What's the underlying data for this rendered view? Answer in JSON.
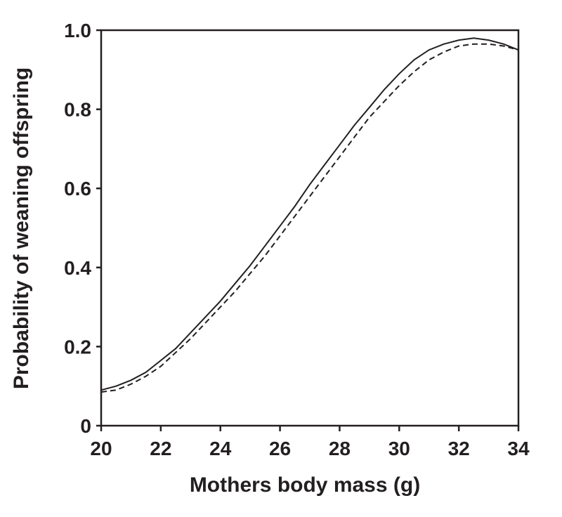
{
  "chart_data": {
    "type": "line",
    "xlabel": "Mothers body mass (g)",
    "ylabel": "Probability of weaning offspring",
    "xlim": [
      20,
      34
    ],
    "ylim": [
      0,
      1.0
    ],
    "x_ticks": [
      20,
      22,
      24,
      26,
      28,
      30,
      32,
      34
    ],
    "x_tick_labels": [
      "20",
      "22",
      "24",
      "26",
      "28",
      "30",
      "32",
      "34"
    ],
    "y_ticks": [
      0,
      0.2,
      0.4,
      0.6,
      0.8,
      1.0
    ],
    "y_tick_labels": [
      "0",
      "0.2",
      "0.4",
      "0.6",
      "0.8",
      "1.0"
    ],
    "grid": false,
    "legend": "none",
    "x": [
      20,
      20.5,
      21,
      21.5,
      22,
      22.5,
      23,
      23.5,
      24,
      24.5,
      25,
      25.5,
      26,
      26.5,
      27,
      27.5,
      28,
      28.5,
      29,
      29.5,
      30,
      30.5,
      31,
      31.5,
      32,
      32.5,
      33,
      33.5,
      34
    ],
    "series": [
      {
        "style": "solid",
        "values": [
          0.09,
          0.1,
          0.115,
          0.135,
          0.165,
          0.195,
          0.235,
          0.275,
          0.315,
          0.36,
          0.405,
          0.455,
          0.505,
          0.555,
          0.61,
          0.66,
          0.71,
          0.76,
          0.805,
          0.85,
          0.89,
          0.925,
          0.95,
          0.965,
          0.975,
          0.98,
          0.975,
          0.965,
          0.95
        ]
      },
      {
        "style": "dashed",
        "values": [
          0.085,
          0.09,
          0.105,
          0.125,
          0.15,
          0.185,
          0.22,
          0.26,
          0.3,
          0.34,
          0.385,
          0.43,
          0.48,
          0.53,
          0.58,
          0.63,
          0.68,
          0.73,
          0.78,
          0.82,
          0.86,
          0.895,
          0.925,
          0.945,
          0.96,
          0.965,
          0.965,
          0.96,
          0.95
        ]
      }
    ]
  }
}
